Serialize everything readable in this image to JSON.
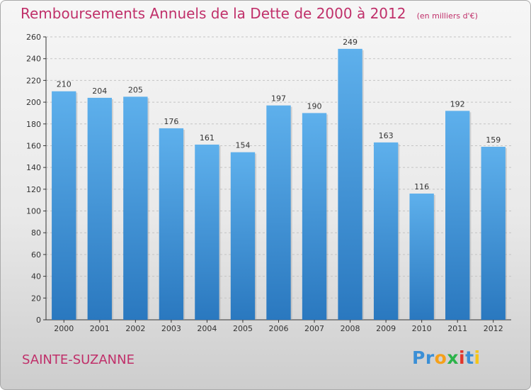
{
  "chart_data": {
    "type": "bar",
    "title": "Remboursements Annuels de la Dette de 2000 à 2012",
    "subtitle": "(en milliers d'€)",
    "categories": [
      "2000",
      "2001",
      "2002",
      "2003",
      "2004",
      "2005",
      "2006",
      "2007",
      "2008",
      "2009",
      "2010",
      "2011",
      "2012"
    ],
    "values": [
      210,
      204,
      205,
      176,
      161,
      154,
      197,
      190,
      249,
      163,
      116,
      192,
      159
    ],
    "xlabel": "",
    "ylabel": "",
    "ylim": [
      0,
      260
    ],
    "yticks": [
      0,
      20,
      40,
      60,
      80,
      100,
      120,
      140,
      160,
      180,
      200,
      220,
      240,
      260
    ],
    "grid": "horizontal-dashed",
    "legend": "none",
    "bar_color": "#4a9ee0"
  },
  "footer": {
    "commune": "SAINTE-SUZANNE",
    "logo_letters": [
      {
        "char": "P",
        "color": "#3a8fd6"
      },
      {
        "char": "r",
        "color": "#3a8fd6"
      },
      {
        "char": "o",
        "color": "#f5a01a"
      },
      {
        "char": "x",
        "color": "#2bb34a"
      },
      {
        "char": "i",
        "color": "#e2352b"
      },
      {
        "char": "t",
        "color": "#3a8fd6"
      },
      {
        "char": "i",
        "color": "#f5c518"
      }
    ]
  }
}
